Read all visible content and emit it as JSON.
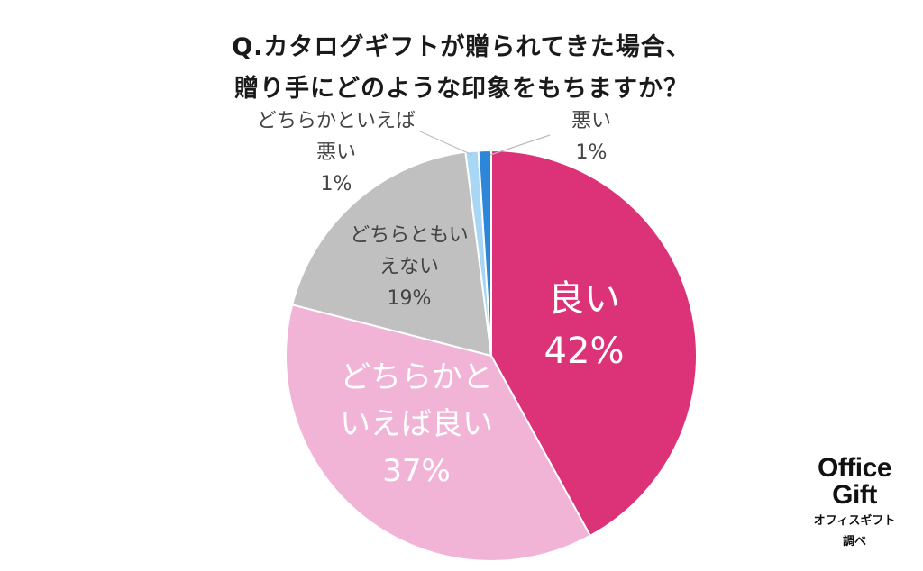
{
  "title": {
    "line1": "Q.カタログギフトが贈られてきた場合、",
    "line2": "贈り手にどのような印象をもちますか？"
  },
  "chart_data": {
    "type": "pie",
    "start_angle_deg": 0,
    "direction": "clockwise",
    "slices": [
      {
        "label_lines": [
          "良い"
        ],
        "value": 42,
        "value_label": "42%",
        "color": "#dc3278",
        "label_color": "#ffffff"
      },
      {
        "label_lines": [
          "どちらかと",
          "いえば良い"
        ],
        "value": 37,
        "value_label": "37%",
        "color": "#f2b4d6",
        "label_color": "#ffffff"
      },
      {
        "label_lines": [
          "どちらともい",
          "えない"
        ],
        "value": 19,
        "value_label": "19%",
        "color": "#c0c0c0",
        "label_color": "#444444"
      },
      {
        "label_lines": [
          "どちらかといえば",
          "悪い"
        ],
        "value": 1,
        "value_label": "1%",
        "color": "#a8d6f5",
        "label_color": "#444444"
      },
      {
        "label_lines": [
          "悪い"
        ],
        "value": 1,
        "value_label": "1%",
        "color": "#2e86d9",
        "label_color": "#444444"
      }
    ]
  },
  "brand": {
    "name_line1": "Office",
    "name_line2": "Gift",
    "sub_line1": "オフィスギフト",
    "sub_line2": "調べ"
  }
}
